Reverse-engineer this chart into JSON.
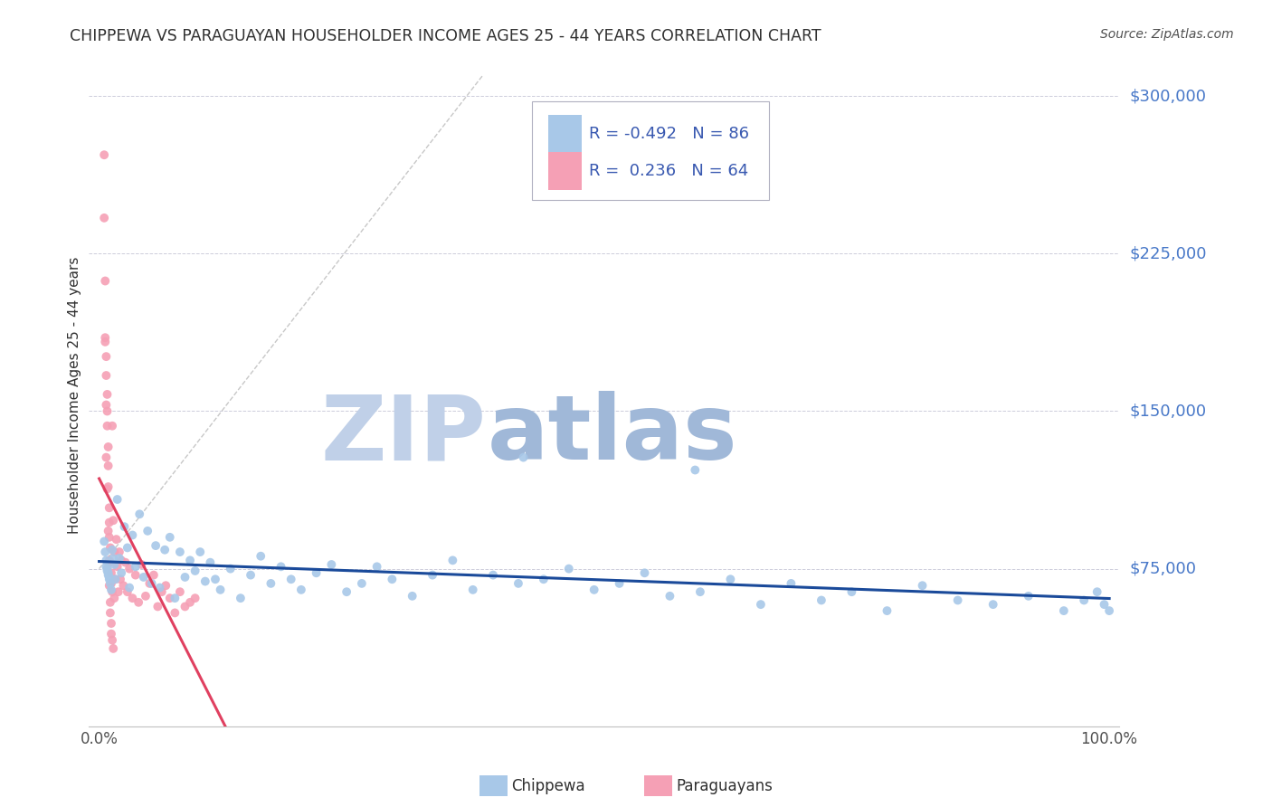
{
  "title": "CHIPPEWA VS PARAGUAYAN HOUSEHOLDER INCOME AGES 25 - 44 YEARS CORRELATION CHART",
  "source": "Source: ZipAtlas.com",
  "ylabel": "Householder Income Ages 25 - 44 years",
  "ytick_labels": [
    "$75,000",
    "$150,000",
    "$225,000",
    "$300,000"
  ],
  "ytick_values": [
    75000,
    150000,
    225000,
    300000
  ],
  "ylim": [
    0,
    315000
  ],
  "xlim": [
    -0.01,
    1.01
  ],
  "chippewa_R": -0.492,
  "chippewa_N": 86,
  "paraguayan_R": 0.236,
  "paraguayan_N": 64,
  "chippewa_color": "#a8c8e8",
  "paraguayan_color": "#f5a0b5",
  "chippewa_line_color": "#1a4a9a",
  "paraguayan_line_color": "#e04060",
  "background_color": "#ffffff",
  "grid_color": "#b8b8cc",
  "title_color": "#303030",
  "source_color": "#505050",
  "ylabel_color": "#303030",
  "ytick_color": "#4878c8",
  "legend_text_color": "#3858b0",
  "watermark_zip_color": "#c0d0e8",
  "watermark_atlas_color": "#a0b8d8",
  "chippewa_x": [
    0.005,
    0.006,
    0.007,
    0.007,
    0.008,
    0.008,
    0.009,
    0.009,
    0.01,
    0.01,
    0.011,
    0.012,
    0.013,
    0.014,
    0.015,
    0.016,
    0.018,
    0.02,
    0.022,
    0.025,
    0.028,
    0.03,
    0.033,
    0.036,
    0.04,
    0.044,
    0.048,
    0.052,
    0.056,
    0.06,
    0.065,
    0.07,
    0.075,
    0.08,
    0.085,
    0.09,
    0.095,
    0.1,
    0.105,
    0.11,
    0.115,
    0.12,
    0.13,
    0.14,
    0.15,
    0.16,
    0.17,
    0.18,
    0.19,
    0.2,
    0.215,
    0.23,
    0.245,
    0.26,
    0.275,
    0.29,
    0.31,
    0.33,
    0.35,
    0.37,
    0.39,
    0.415,
    0.44,
    0.465,
    0.49,
    0.515,
    0.54,
    0.565,
    0.595,
    0.625,
    0.655,
    0.685,
    0.715,
    0.745,
    0.78,
    0.815,
    0.85,
    0.885,
    0.92,
    0.955,
    0.975,
    0.988,
    0.995,
    1.0,
    0.59,
    0.42
  ],
  "chippewa_y": [
    88000,
    83000,
    79000,
    76000,
    75000,
    74000,
    73000,
    72000,
    71000,
    70000,
    68000,
    65000,
    84000,
    80000,
    77000,
    70000,
    108000,
    80000,
    73000,
    95000,
    85000,
    66000,
    91000,
    76000,
    101000,
    71000,
    93000,
    68000,
    86000,
    66000,
    84000,
    90000,
    61000,
    83000,
    71000,
    79000,
    74000,
    83000,
    69000,
    78000,
    70000,
    65000,
    75000,
    61000,
    72000,
    81000,
    68000,
    76000,
    70000,
    65000,
    73000,
    77000,
    64000,
    68000,
    76000,
    70000,
    62000,
    72000,
    79000,
    65000,
    72000,
    68000,
    70000,
    75000,
    65000,
    68000,
    73000,
    62000,
    64000,
    70000,
    58000,
    68000,
    60000,
    64000,
    55000,
    67000,
    60000,
    58000,
    62000,
    55000,
    60000,
    64000,
    58000,
    55000,
    122000,
    128000
  ],
  "paraguayan_x": [
    0.005,
    0.005,
    0.006,
    0.006,
    0.007,
    0.007,
    0.008,
    0.008,
    0.008,
    0.009,
    0.009,
    0.009,
    0.01,
    0.01,
    0.01,
    0.011,
    0.011,
    0.012,
    0.012,
    0.013,
    0.013,
    0.014,
    0.015,
    0.016,
    0.017,
    0.018,
    0.019,
    0.02,
    0.021,
    0.022,
    0.024,
    0.026,
    0.028,
    0.03,
    0.033,
    0.036,
    0.039,
    0.042,
    0.046,
    0.05,
    0.054,
    0.058,
    0.062,
    0.066,
    0.07,
    0.075,
    0.08,
    0.085,
    0.09,
    0.095,
    0.006,
    0.007,
    0.007,
    0.008,
    0.009,
    0.01,
    0.01,
    0.011,
    0.011,
    0.012,
    0.012,
    0.013,
    0.014,
    0.015
  ],
  "paraguayan_y": [
    272000,
    242000,
    212000,
    185000,
    176000,
    167000,
    158000,
    150000,
    143000,
    133000,
    124000,
    114000,
    104000,
    97000,
    90000,
    85000,
    78000,
    73000,
    68000,
    64000,
    143000,
    98000,
    83000,
    70000,
    89000,
    76000,
    64000,
    83000,
    70000,
    79000,
    67000,
    78000,
    64000,
    75000,
    61000,
    72000,
    59000,
    77000,
    62000,
    68000,
    72000,
    57000,
    64000,
    67000,
    61000,
    54000,
    64000,
    57000,
    59000,
    61000,
    183000,
    153000,
    128000,
    113000,
    93000,
    79000,
    67000,
    59000,
    54000,
    49000,
    44000,
    41000,
    37000,
    61000
  ]
}
